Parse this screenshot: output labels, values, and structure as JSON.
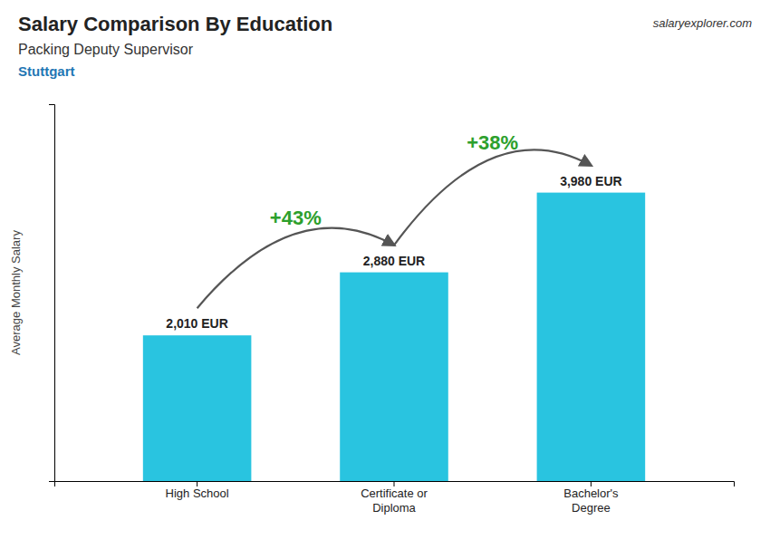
{
  "chart_data": {
    "type": "bar",
    "title": "Salary Comparison By Education",
    "subtitle": "Packing Deputy Supervisor",
    "ylabel": "Average Monthly Salary",
    "categories": [
      "High School",
      "Certificate or\nDiploma",
      "Bachelor's\nDegree"
    ],
    "values": [
      2010,
      2880,
      3980
    ],
    "value_labels": [
      "2,010 EUR",
      "2,880 EUR",
      "3,980 EUR"
    ],
    "color": "#29c4e0",
    "ylim": [
      0,
      5200
    ],
    "data_labels": true,
    "tick_labels": "x",
    "grid": false,
    "annotations": [
      {
        "text": "Stuttgart"
      },
      {
        "text": "salaryexplorer.com"
      },
      {
        "text": "+43%",
        "between": [
          0,
          1
        ]
      },
      {
        "text": "+38%",
        "between": [
          1,
          2
        ]
      }
    ]
  }
}
